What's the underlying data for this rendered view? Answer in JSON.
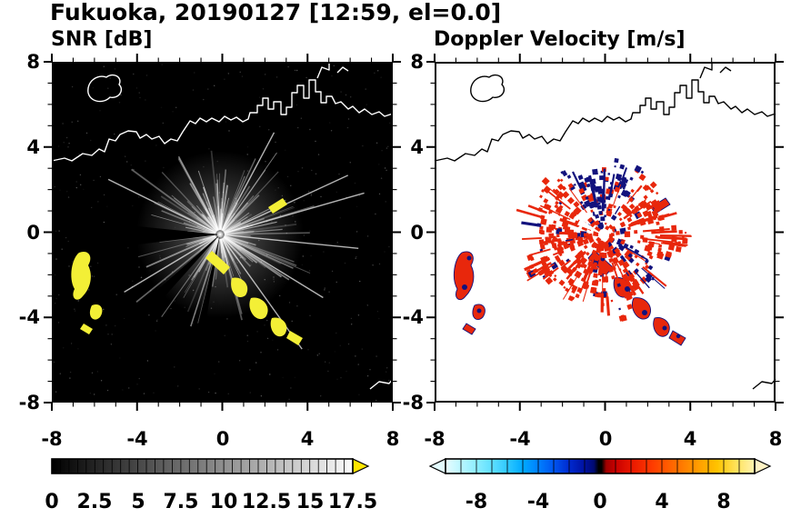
{
  "title": "Fukuoka, 20190127 [12:59, el=0.0]",
  "panels": [
    {
      "id": "snr",
      "title": "SNR [dB]",
      "x_tick_labels": [
        "-8",
        "-4",
        "0",
        "4",
        "8"
      ],
      "y_tick_labels": [
        "8",
        "4",
        "0",
        "-4",
        "-8"
      ]
    },
    {
      "id": "doppler",
      "title": "Doppler Velocity [m/s]",
      "x_tick_labels": [
        "-8",
        "-4",
        "0",
        "4",
        "8"
      ],
      "y_tick_labels": [
        "8",
        "4",
        "0",
        "-4",
        "-8"
      ]
    }
  ],
  "colorbars": {
    "snr": {
      "tick_labels": [
        "0",
        "2.5",
        "5",
        "7.5",
        "10",
        "12.5",
        "15",
        "17.5"
      ],
      "range": [
        0,
        17.5
      ],
      "colormap": "grayscale black-to-white",
      "overflow_arrow_color": "#ffe600"
    },
    "doppler": {
      "tick_labels": [
        "-8",
        "-4",
        "0",
        "4",
        "8"
      ],
      "range": [
        -10,
        10
      ],
      "colormap": "cyan-blue-navy-black-red-orange-yellow",
      "underflow_arrow_color": "#e3fcff",
      "overflow_arrow_color": "#fff3c4"
    }
  },
  "colors": {
    "snr_background": "#000000",
    "snr_strong_echo": "#f3ef36",
    "doppler_positive": "#e8270c",
    "doppler_negative": "#12127d",
    "coastline_snr": "#ffffff",
    "coastline_doppler": "#000000"
  },
  "chart_data": [
    {
      "type": "heatmap",
      "title": "SNR [dB]",
      "xlabel": "",
      "ylabel": "",
      "xlim": [
        -8,
        8
      ],
      "ylim": [
        -8,
        8
      ],
      "x_ticks": [
        -8,
        -4,
        0,
        4,
        8
      ],
      "y_ticks": [
        -8,
        -4,
        0,
        4,
        8
      ],
      "background": "#000000",
      "colorbar": {
        "range": [
          0,
          17.5
        ],
        "ticks": [
          0,
          2.5,
          5,
          7.5,
          10,
          12.5,
          15,
          17.5
        ],
        "colormap": "grayscale",
        "overflow": "yellow"
      },
      "features": [
        {
          "name": "radar-site",
          "x": 0,
          "y": 0
        },
        {
          "name": "ground-clutter-radial-streaks",
          "center": [
            0,
            0
          ],
          "radius_km": 4,
          "appearance": "gray radial spokes with dark blocked-beam wedges toward W and SW"
        },
        {
          "name": "strong-echo-arc",
          "color": "yellow",
          "approx_points": [
            [
              -6.6,
              -0.9
            ],
            [
              -6.3,
              -2.2
            ],
            [
              -5.9,
              -3.2
            ]
          ]
        },
        {
          "name": "strong-echo-chain",
          "color": "yellow",
          "approx_points": [
            [
              -0.3,
              -1.0
            ],
            [
              0.6,
              -1.9
            ],
            [
              1.6,
              -2.7
            ],
            [
              2.7,
              -3.5
            ],
            [
              3.6,
              -4.1
            ]
          ]
        },
        {
          "name": "small-echo",
          "color": "yellow",
          "approx_points": [
            [
              2.5,
              1.3
            ]
          ]
        },
        {
          "name": "coastline",
          "color": "white",
          "location": "across upper third with harbor piers near (2,5) and island near (-5.5,6)"
        }
      ]
    },
    {
      "type": "heatmap",
      "title": "Doppler Velocity [m/s]",
      "xlabel": "",
      "ylabel": "",
      "xlim": [
        -8,
        8
      ],
      "ylim": [
        -8,
        8
      ],
      "x_ticks": [
        -8,
        -4,
        0,
        4,
        8
      ],
      "y_ticks": [
        -8,
        -4,
        0,
        4,
        8
      ],
      "background": "#ffffff",
      "colorbar": {
        "range": [
          -10,
          10
        ],
        "ticks": [
          -8,
          -4,
          0,
          4,
          8
        ],
        "colormap": "cyan-blue-navy-black-red-orange-yellow",
        "underflow": "pale cyan",
        "overflow": "pale yellow"
      },
      "features": [
        {
          "name": "radar-site",
          "x": 0,
          "y": 0
        },
        {
          "name": "central-velocity-field",
          "center": [
            0,
            0
          ],
          "radius_km": 3.5,
          "appearance": "mostly positive (red) velocities with negative (navy) patches toward N and NE, spiky edges, white hole at radar site"
        },
        {
          "name": "echo-arc",
          "colors": [
            "red",
            "navy"
          ],
          "approx_points": [
            [
              -6.6,
              -0.9
            ],
            [
              -6.3,
              -2.2
            ],
            [
              -5.9,
              -3.2
            ]
          ]
        },
        {
          "name": "echo-chain",
          "colors": [
            "red",
            "navy"
          ],
          "approx_points": [
            [
              0.6,
              -1.9
            ],
            [
              1.6,
              -2.7
            ],
            [
              2.7,
              -3.5
            ],
            [
              3.6,
              -4.1
            ]
          ]
        },
        {
          "name": "coastline",
          "color": "black",
          "location": "same geography as SNR panel"
        }
      ]
    }
  ]
}
